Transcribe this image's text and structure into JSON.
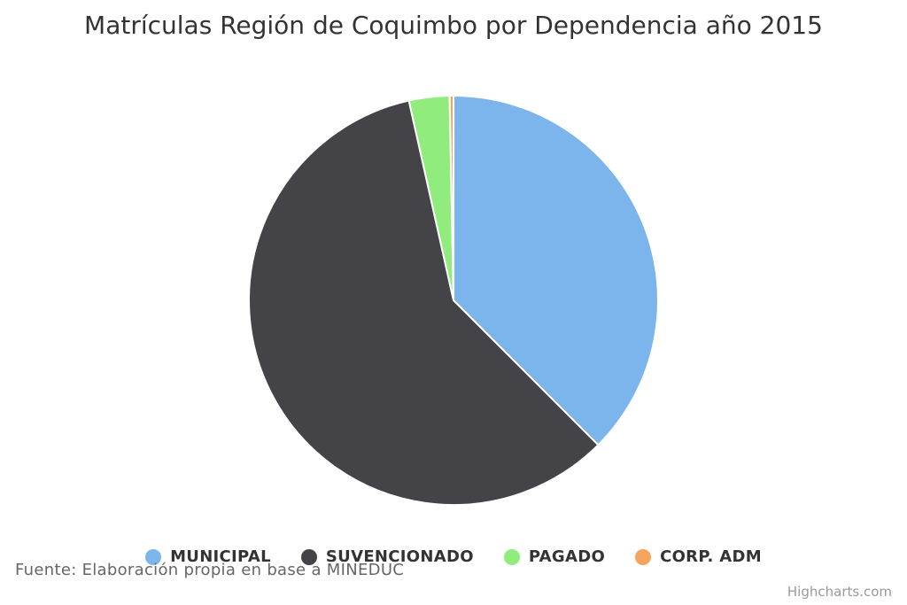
{
  "chart": {
    "title": "Matrículas Región de Coquimbo por Dependencia año 2015",
    "source": "Fuente: Elaboración propia en base a MINEDUC",
    "credits": "Highcharts.com"
  },
  "chart_data": {
    "type": "pie",
    "title": "Matrículas Región de Coquimbo por Dependencia año 2015",
    "legend_position": "bottom",
    "series": [
      {
        "name": "MUNICIPAL",
        "value": 37.5,
        "color": "#7cb5ec"
      },
      {
        "name": "SUVENCIONADO",
        "value": 59.0,
        "color": "#434348"
      },
      {
        "name": "PAGADO",
        "value": 3.2,
        "color": "#90ed7d"
      },
      {
        "name": "CORP. ADM",
        "value": 0.3,
        "color": "#f7a35c"
      }
    ]
  },
  "legend": {
    "items": [
      {
        "label": "MUNICIPAL",
        "color": "#7cb5ec"
      },
      {
        "label": "SUVENCIONADO",
        "color": "#434348"
      },
      {
        "label": "PAGADO",
        "color": "#90ed7d"
      },
      {
        "label": "CORP. ADM",
        "color": "#f7a35c"
      }
    ]
  }
}
